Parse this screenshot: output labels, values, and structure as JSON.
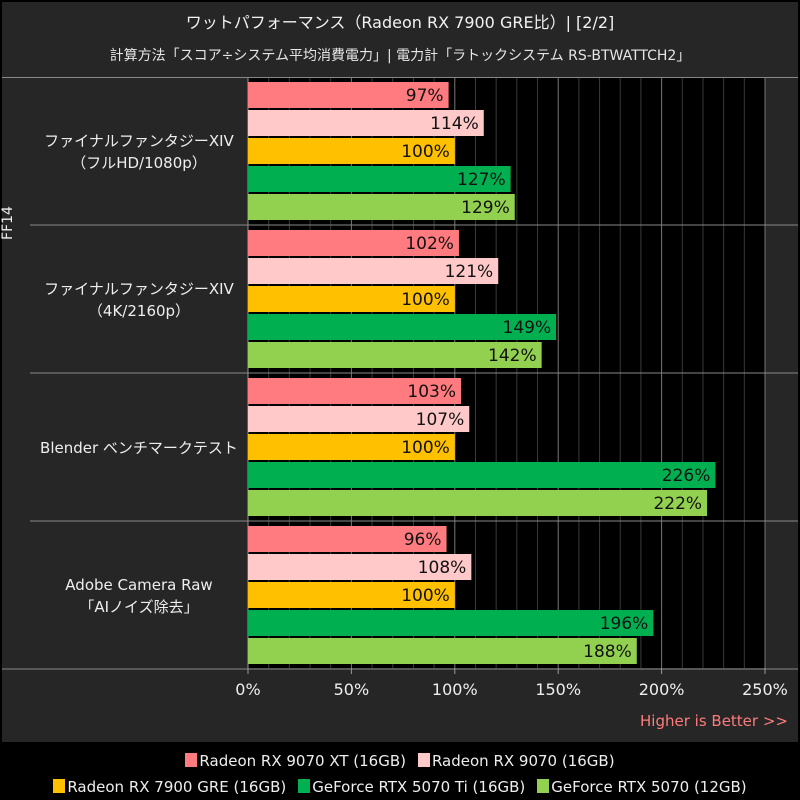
{
  "title": "ワットパフォーマンス（Radeon RX 7900 GRE比）| [2/2]",
  "subtitle": "計算方法「スコア÷システム平均消費電力」| 電力計「ラトックシステム RS-BTWATTCH2」",
  "side_label": "FF14",
  "note": "Higher is Better >>",
  "chart_data": {
    "type": "bar",
    "orientation": "horizontal",
    "categories": [
      [
        "ファイナルファンタジーXIV",
        "（フルHD/1080p）"
      ],
      [
        "ファイナルファンタジーXIV",
        "（4K/2160p）"
      ],
      [
        "Blender ベンチマークテスト"
      ],
      [
        "Adobe Camera Raw",
        "「AIノイズ除去」"
      ]
    ],
    "series": [
      {
        "name": "Radeon RX 9070 XT (16GB)",
        "color": "#ff7b7f",
        "values": [
          97,
          102,
          103,
          96
        ]
      },
      {
        "name": "Radeon RX 9070 (16GB)",
        "color": "#ffc9c9",
        "values": [
          114,
          121,
          107,
          108
        ]
      },
      {
        "name": "Radeon RX 7900 GRE (16GB)",
        "color": "#ffc000",
        "values": [
          100,
          100,
          100,
          100
        ]
      },
      {
        "name": "GeForce RTX 5070 Ti (16GB)",
        "color": "#00b050",
        "values": [
          127,
          149,
          226,
          196
        ]
      },
      {
        "name": "GeForce RTX 5070 (12GB)",
        "color": "#92d050",
        "values": [
          129,
          142,
          222,
          188
        ]
      }
    ],
    "xlim": [
      0,
      250
    ],
    "xticks": [
      "0%",
      "50%",
      "100%",
      "150%",
      "200%",
      "250%"
    ],
    "value_suffix": "%",
    "grid": true,
    "legend": "bottom"
  }
}
